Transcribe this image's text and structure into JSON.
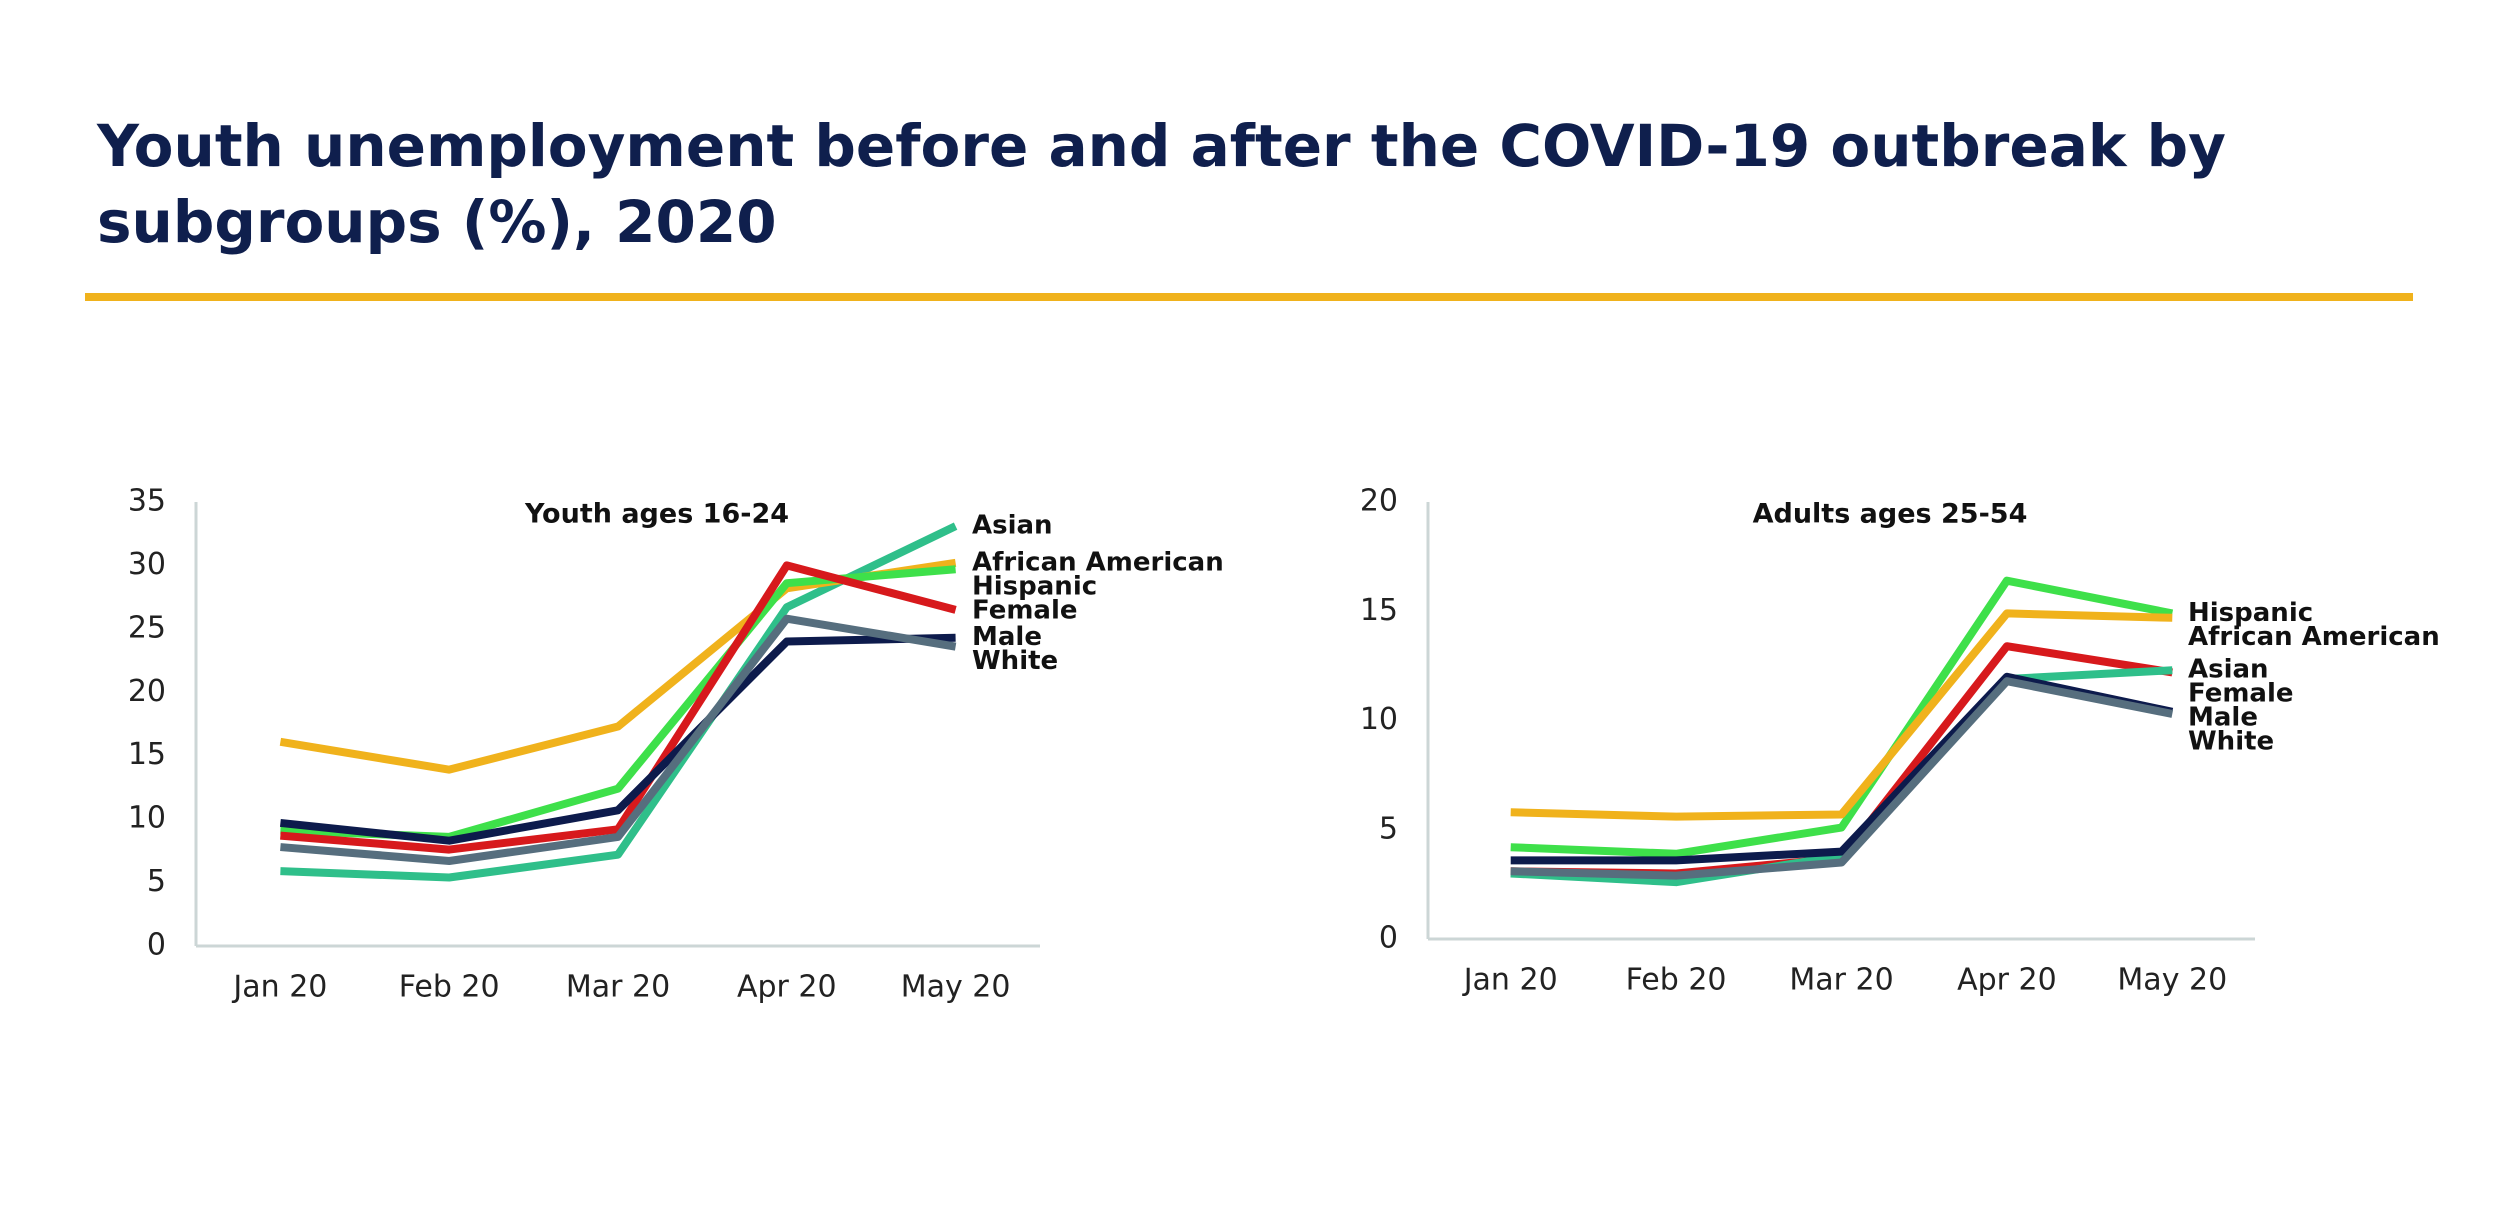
{
  "title_lines": [
    "Youth unemployment before and after the COVID-19 outbreak by",
    "subgroups (%), 2020"
  ],
  "chart_data": [
    {
      "type": "line",
      "title": "Youth ages 16-24",
      "categories": [
        "Jan 20",
        "Feb 20",
        "Mar 20",
        "Apr 20",
        "May 20"
      ],
      "ylim": [
        0,
        35
      ],
      "yticks": [
        0,
        5,
        10,
        15,
        20,
        25,
        30,
        35
      ],
      "series": [
        {
          "name": "Asian",
          "color": "#2fbf8a",
          "values": [
            5.9,
            5.4,
            7.2,
            26.7,
            33.1
          ]
        },
        {
          "name": "African American",
          "color": "#f0b21c",
          "values": [
            16.1,
            13.9,
            17.3,
            28.2,
            30.2
          ]
        },
        {
          "name": "Hispanic",
          "color": "#3ee04a",
          "values": [
            9.1,
            8.6,
            12.4,
            28.6,
            29.7
          ]
        },
        {
          "name": "Female",
          "color": "#d7191c",
          "values": [
            8.7,
            7.6,
            9.2,
            30.0,
            26.5
          ]
        },
        {
          "name": "Male",
          "color": "#0d1b4c",
          "values": [
            9.7,
            8.3,
            10.7,
            24.0,
            24.3
          ]
        },
        {
          "name": "White",
          "color": "#566e7e",
          "values": [
            7.8,
            6.7,
            8.6,
            25.8,
            23.6
          ]
        }
      ]
    },
    {
      "type": "line",
      "title": "Adults ages 25-54",
      "categories": [
        "Jan 20",
        "Feb 20",
        "Mar 20",
        "Apr 20",
        "May 20"
      ],
      "ylim": [
        0,
        20
      ],
      "yticks": [
        0,
        5,
        10,
        15,
        20
      ],
      "series": [
        {
          "name": "Hispanic",
          "color": "#3ee04a",
          "values": [
            4.2,
            3.9,
            5.1,
            16.4,
            14.9
          ]
        },
        {
          "name": "African American",
          "color": "#f0b21c",
          "values": [
            5.8,
            5.6,
            5.7,
            14.9,
            14.7
          ]
        },
        {
          "name": "Female",
          "color": "#d7191c",
          "values": [
            3.1,
            3.0,
            3.7,
            13.4,
            12.2
          ]
        },
        {
          "name": "Asian",
          "color": "#2fbf8a",
          "values": [
            3.0,
            2.6,
            3.8,
            11.9,
            12.3
          ]
        },
        {
          "name": "Male",
          "color": "#0d1b4c",
          "values": [
            3.6,
            3.6,
            4.0,
            12.0,
            10.4
          ]
        },
        {
          "name": "White",
          "color": "#566e7e",
          "values": [
            3.1,
            2.9,
            3.5,
            11.8,
            10.3
          ]
        }
      ]
    }
  ]
}
